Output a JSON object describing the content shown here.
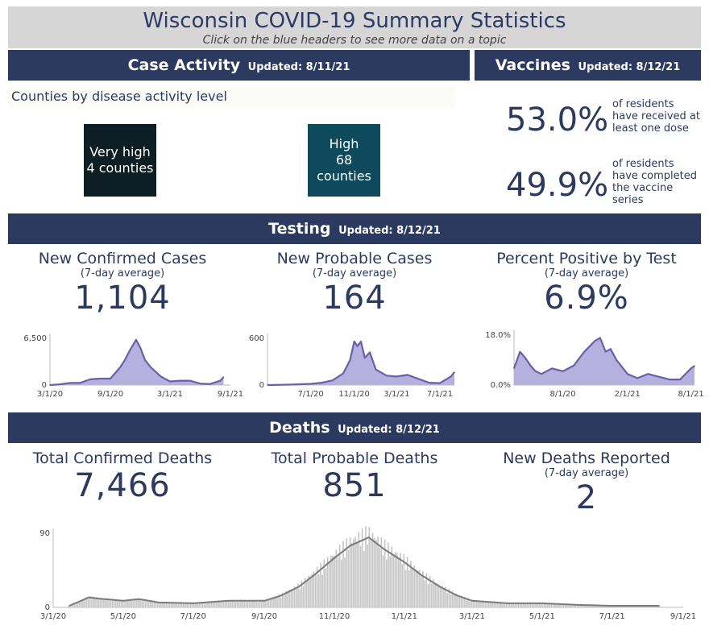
{
  "header": {
    "title": "Wisconsin COVID-19 Summary Statistics",
    "subtitle": "Click on the blue headers to see more data on a topic"
  },
  "case_activity": {
    "label": "Case Activity",
    "updated": "Updated: 8/11/21",
    "subheading": "Counties by disease activity level",
    "tiles": [
      {
        "level": "Very high",
        "count": "4 counties",
        "color": "#0d1f24"
      },
      {
        "level": "High",
        "count": "68 counties",
        "color": "#0e4a5c"
      }
    ]
  },
  "vaccines": {
    "label": "Vaccines",
    "updated": "Updated: 8/12/21",
    "items": [
      {
        "value": "53.0%",
        "desc": [
          "of residents",
          "have received at",
          "least one dose"
        ]
      },
      {
        "value": "49.9%",
        "desc": [
          "of residents",
          "have completed",
          "the vaccine",
          "series"
        ]
      }
    ]
  },
  "testing": {
    "label": "Testing",
    "updated": "Updated: 8/12/21",
    "stats": [
      {
        "label": "New Confirmed Cases",
        "sub": "(7-day average)",
        "value": "1,104"
      },
      {
        "label": "New Probable Cases",
        "sub": "(7-day average)",
        "value": "164"
      },
      {
        "label": "Percent Positive by Test",
        "sub": "(7-day average)",
        "value": "6.9%"
      }
    ]
  },
  "deaths": {
    "label": "Deaths",
    "updated": "Updated: 8/12/21",
    "stats": [
      {
        "label": "Total Confirmed Deaths",
        "sub": "",
        "value": "7,466"
      },
      {
        "label": "Total Probable Deaths",
        "sub": "",
        "value": "851"
      },
      {
        "label": "New Deaths Reported",
        "sub": "(7-day average)",
        "value": "2"
      }
    ]
  },
  "colors": {
    "header_bg": "#2b3a5e",
    "testing_line": "#6a5fa8",
    "testing_fill": "#b5b0dd",
    "deaths_line": "#7a7a7a",
    "deaths_fill": "#c8c8c8"
  },
  "chart_data": [
    {
      "type": "area",
      "name": "confirmed-cases",
      "ylim": [
        0,
        6500
      ],
      "yticks": [
        "6,500",
        "0"
      ],
      "xticks": [
        "3/1/20",
        "9/1/20",
        "3/1/21",
        "9/1/21"
      ],
      "x": [
        "3/1/20",
        "4/1/20",
        "5/1/20",
        "6/1/20",
        "7/1/20",
        "8/1/20",
        "9/1/20",
        "10/1/20",
        "10/15/20",
        "11/1/20",
        "11/18/20",
        "12/1/20",
        "12/15/20",
        "1/1/21",
        "2/1/21",
        "3/1/21",
        "4/1/21",
        "5/1/21",
        "6/1/21",
        "7/1/21",
        "8/1/21",
        "8/11/21"
      ],
      "values": [
        0,
        100,
        300,
        300,
        800,
        900,
        900,
        2500,
        3500,
        5000,
        6300,
        5200,
        3500,
        2500,
        1200,
        500,
        600,
        600,
        200,
        150,
        600,
        1100
      ]
    },
    {
      "type": "area",
      "name": "probable-cases",
      "ylim": [
        0,
        600
      ],
      "yticks": [
        "600",
        "0"
      ],
      "xticks": [
        "7/1/20",
        "11/1/20",
        "3/1/21",
        "7/1/21"
      ],
      "x": [
        "3/1/20",
        "5/1/20",
        "7/1/20",
        "8/1/20",
        "9/1/20",
        "10/1/20",
        "10/20/20",
        "11/1/20",
        "11/10/20",
        "11/20/20",
        "12/1/20",
        "12/15/20",
        "1/1/21",
        "2/1/21",
        "3/1/21",
        "4/1/21",
        "5/1/21",
        "6/1/21",
        "7/1/21",
        "8/1/21",
        "8/11/21"
      ],
      "values": [
        0,
        5,
        15,
        30,
        60,
        150,
        320,
        560,
        500,
        560,
        350,
        420,
        200,
        120,
        110,
        130,
        80,
        30,
        25,
        110,
        164
      ]
    },
    {
      "type": "area",
      "name": "percent-positive",
      "ylim": [
        0,
        18
      ],
      "yticks": [
        "18.0%",
        "0.0%"
      ],
      "xticks": [
        "8/1/20",
        "2/1/21",
        "8/1/21"
      ],
      "x": [
        "3/15/20",
        "4/1/20",
        "4/15/20",
        "5/1/20",
        "5/15/20",
        "6/1/20",
        "7/1/20",
        "8/1/20",
        "9/1/20",
        "10/1/20",
        "11/1/20",
        "11/15/20",
        "12/1/20",
        "12/15/20",
        "1/1/21",
        "2/1/21",
        "3/1/21",
        "4/1/21",
        "5/1/21",
        "6/1/21",
        "7/1/21",
        "8/1/21",
        "8/11/21"
      ],
      "values": [
        6,
        12,
        10,
        7,
        5,
        4,
        6,
        5,
        7,
        12,
        16,
        17,
        12,
        13,
        9,
        4,
        2.5,
        4,
        3,
        2,
        2,
        6,
        6.9
      ]
    },
    {
      "type": "bar",
      "name": "deaths",
      "ylim": [
        0,
        90
      ],
      "yticks": [
        "90",
        "0"
      ],
      "xticks": [
        "3/1/20",
        "5/1/20",
        "7/1/20",
        "9/1/20",
        "11/1/20",
        "1/1/21",
        "3/1/21",
        "5/1/21",
        "7/1/21",
        "9/1/21"
      ],
      "x": [
        "3/15/20",
        "4/1/20",
        "4/15/20",
        "5/1/20",
        "5/15/20",
        "6/1/20",
        "7/1/20",
        "8/1/20",
        "9/1/20",
        "9/15/20",
        "10/1/20",
        "10/15/20",
        "11/1/20",
        "11/15/20",
        "12/1/20",
        "12/15/20",
        "1/1/21",
        "1/15/21",
        "2/1/21",
        "2/15/21",
        "3/1/21",
        "4/1/21",
        "5/1/21",
        "6/1/21",
        "7/1/21",
        "8/1/21",
        "8/11/21"
      ],
      "values": [
        2,
        12,
        10,
        8,
        10,
        6,
        5,
        8,
        8,
        14,
        25,
        40,
        60,
        75,
        85,
        70,
        55,
        40,
        25,
        15,
        8,
        5,
        5,
        3,
        2,
        2,
        2
      ]
    }
  ]
}
